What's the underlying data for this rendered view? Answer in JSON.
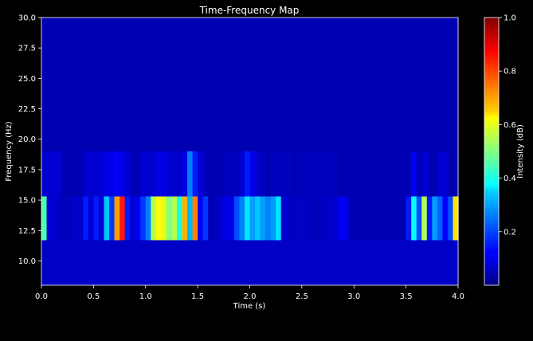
{
  "chart_data": {
    "type": "heatmap",
    "title": "Time-Frequency Map",
    "xlabel": "Time (s)",
    "ylabel": "Frequency (Hz)",
    "xlim": [
      0.0,
      4.0
    ],
    "ylim": [
      8.0,
      30.0
    ],
    "x_ticks": [
      "0.0",
      "0.5",
      "1.0",
      "1.5",
      "2.0",
      "2.5",
      "3.0",
      "3.5",
      "4.0"
    ],
    "y_ticks": [
      "10.0",
      "12.5",
      "15.0",
      "17.5",
      "20.0",
      "22.5",
      "25.0",
      "27.5",
      "30.0"
    ],
    "colorbar": {
      "label": "Intensity (dB)",
      "colormap": "jet",
      "range": [
        0.0,
        1.0
      ],
      "ticks": [
        "0.2",
        "0.4",
        "0.6",
        "0.8",
        "1.0"
      ]
    },
    "background_color": "#000000",
    "grid": false,
    "time_bins": 80,
    "freq_bands": [
      {
        "range": [
          8.0,
          11.7
        ],
        "level": 0.07
      },
      {
        "range": [
          11.7,
          15.3
        ],
        "values": [
          0.45,
          0.08,
          0.08,
          0.06,
          0.06,
          0.06,
          0.08,
          0.07,
          0.15,
          0.08,
          0.15,
          0.08,
          0.32,
          0.18,
          0.72,
          0.85,
          0.15,
          0.08,
          0.12,
          0.18,
          0.25,
          0.55,
          0.62,
          0.6,
          0.5,
          0.55,
          0.4,
          0.7,
          0.3,
          0.75,
          0.12,
          0.18,
          0.05,
          0.06,
          0.08,
          0.1,
          0.1,
          0.2,
          0.25,
          0.35,
          0.28,
          0.32,
          0.28,
          0.25,
          0.28,
          0.35,
          0.08,
          0.07,
          0.06,
          0.07,
          0.07,
          0.06,
          0.06,
          0.06,
          0.07,
          0.07,
          0.08,
          0.12,
          0.1,
          0.05,
          0.05,
          0.05,
          0.05,
          0.05,
          0.05,
          0.05,
          0.05,
          0.05,
          0.05,
          0.05,
          0.15,
          0.38,
          0.2,
          0.55,
          0.15,
          0.28,
          0.22,
          0.12,
          0.2,
          0.65
        ]
      },
      {
        "range": [
          15.3,
          19.0
        ],
        "values": [
          0.08,
          0.08,
          0.08,
          0.08,
          0.05,
          0.05,
          0.05,
          0.05,
          0.08,
          0.08,
          0.08,
          0.08,
          0.1,
          0.1,
          0.12,
          0.1,
          0.08,
          0.06,
          0.05,
          0.08,
          0.08,
          0.08,
          0.1,
          0.1,
          0.08,
          0.08,
          0.07,
          0.1,
          0.25,
          0.15,
          0.08,
          0.06,
          0.05,
          0.05,
          0.05,
          0.06,
          0.06,
          0.06,
          0.08,
          0.15,
          0.1,
          0.08,
          0.06,
          0.05,
          0.06,
          0.06,
          0.06,
          0.06,
          0.05,
          0.06,
          0.06,
          0.06,
          0.06,
          0.06,
          0.06,
          0.06,
          0.06,
          0.05,
          0.05,
          0.05,
          0.05,
          0.05,
          0.05,
          0.05,
          0.05,
          0.05,
          0.05,
          0.05,
          0.05,
          0.05,
          0.05,
          0.12,
          0.05,
          0.08,
          0.06,
          0.05,
          0.08,
          0.08,
          0.05,
          0.05
        ]
      },
      {
        "range": [
          19.0,
          30.0
        ],
        "level": 0.05
      }
    ]
  }
}
